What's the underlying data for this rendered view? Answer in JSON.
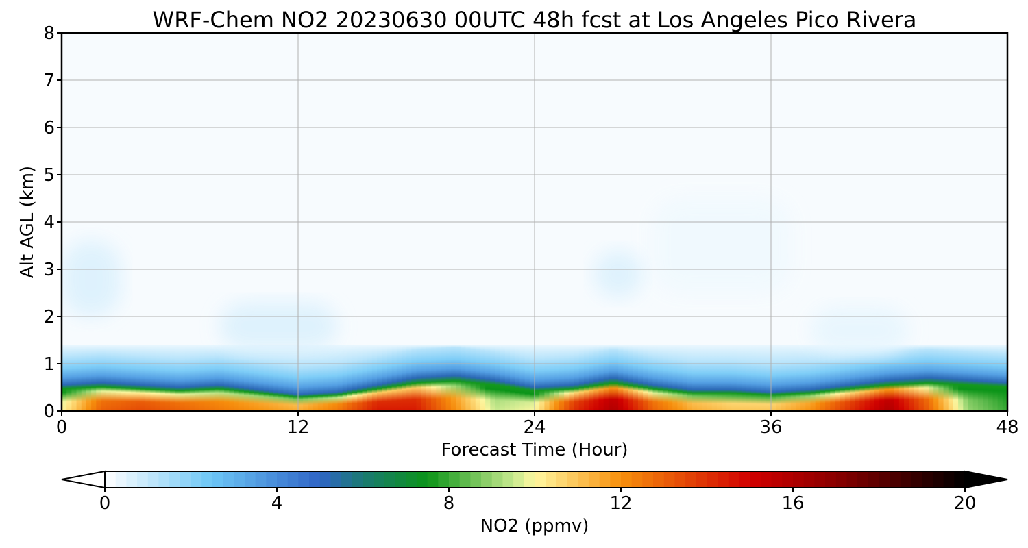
{
  "chart_data": {
    "type": "heatmap",
    "title": "WRF-Chem NO2  20230630 00UTC 48h fcst at Los Angeles Pico Rivera",
    "xlabel": "Forecast Time (Hour)",
    "ylabel": "Alt AGL (km)",
    "xlim": [
      0,
      48
    ],
    "ylim": [
      0,
      8
    ],
    "x_ticks": [
      "0",
      "12",
      "24",
      "36",
      "48"
    ],
    "y_ticks": [
      "0",
      "1",
      "2",
      "3",
      "4",
      "5",
      "6",
      "7",
      "8"
    ],
    "grid": true,
    "colorbar": {
      "label": "NO2  (ppmv)",
      "range": [
        0,
        20
      ],
      "ticks": [
        "0",
        "4",
        "8",
        "12",
        "16",
        "20"
      ],
      "extend": "both",
      "stops": [
        {
          "v": 0,
          "color": "#ffffff"
        },
        {
          "v": 2.5,
          "color": "#6cc6f6"
        },
        {
          "v": 5,
          "color": "#2f64c6"
        },
        {
          "v": 6,
          "color": "#1a7a73"
        },
        {
          "v": 7.5,
          "color": "#0b9418"
        },
        {
          "v": 9.5,
          "color": "#c6e98e"
        },
        {
          "v": 10,
          "color": "#fff7a0"
        },
        {
          "v": 12,
          "color": "#f7900c"
        },
        {
          "v": 15,
          "color": "#d10000"
        },
        {
          "v": 17,
          "color": "#8a0000"
        },
        {
          "v": 20,
          "color": "#000000"
        }
      ]
    },
    "x": [
      0,
      2,
      4,
      6,
      8,
      10,
      12,
      14,
      16,
      18,
      20,
      22,
      24,
      26,
      28,
      30,
      32,
      34,
      36,
      38,
      40,
      42,
      44,
      46,
      48
    ],
    "surface_no2": [
      10,
      13,
      13.5,
      13,
      12.5,
      12,
      11.5,
      12.5,
      14.5,
      14.5,
      12,
      9.5,
      10,
      14,
      16,
      13,
      11.5,
      11,
      11,
      12,
      14,
      16,
      13,
      9,
      8
    ],
    "mixing_height_km": [
      0.55,
      0.6,
      0.55,
      0.5,
      0.55,
      0.45,
      0.35,
      0.4,
      0.55,
      0.7,
      0.75,
      0.65,
      0.5,
      0.55,
      0.7,
      0.55,
      0.45,
      0.45,
      0.4,
      0.45,
      0.55,
      0.65,
      0.7,
      0.65,
      0.6
    ],
    "residual_layer": [
      {
        "x": 0,
        "y": 2.0,
        "width": 3.0,
        "height": 1.6,
        "value": 0.6
      },
      {
        "x": 8,
        "y": 1.3,
        "width": 6.0,
        "height": 1.0,
        "value": 0.6
      },
      {
        "x": 30,
        "y": 2.5,
        "width": 7.0,
        "height": 2.0,
        "value": 0.25
      },
      {
        "x": 27,
        "y": 2.4,
        "width": 2.5,
        "height": 1.0,
        "value": 0.6
      },
      {
        "x": 38,
        "y": 1.2,
        "width": 5.0,
        "height": 1.0,
        "value": 0.4
      }
    ]
  }
}
